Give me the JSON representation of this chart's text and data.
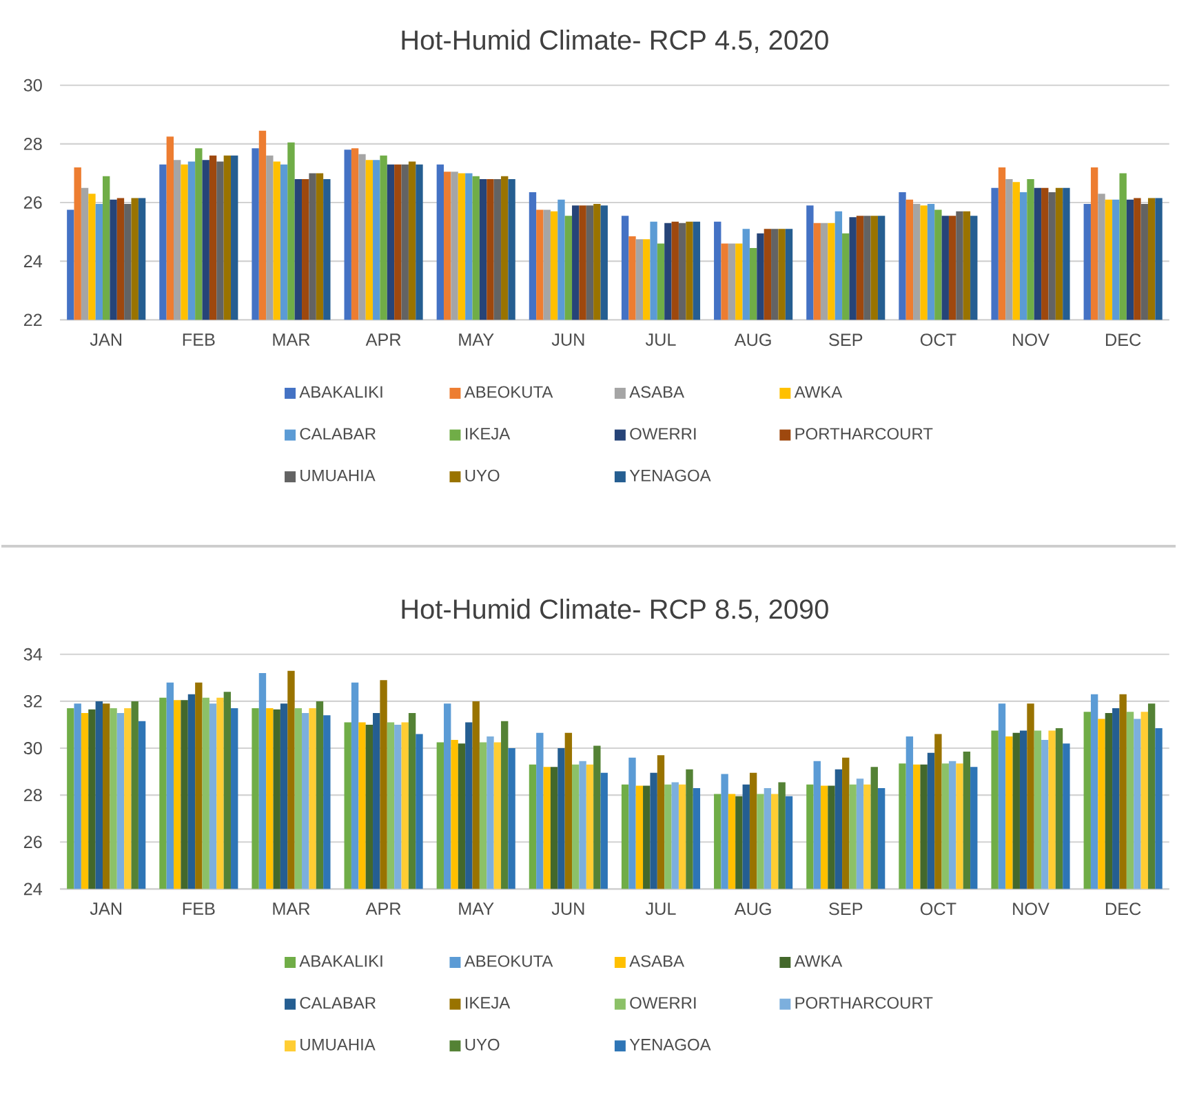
{
  "chart_data": [
    {
      "type": "bar",
      "title": "Hot-Humid Climate- RCP 4.5, 2020",
      "categories": [
        "JAN",
        "FEB",
        "MAR",
        "APR",
        "MAY",
        "JUN",
        "JUL",
        "AUG",
        "SEP",
        "OCT",
        "NOV",
        "DEC"
      ],
      "ylim": [
        22,
        30
      ],
      "yticks": [
        22,
        24,
        26,
        28,
        30
      ],
      "grid": "y",
      "legend": "bottom",
      "series": [
        {
          "name": "ABAKALIKI",
          "color": "#4472c4",
          "values": [
            25.75,
            27.3,
            27.85,
            27.8,
            27.3,
            26.35,
            25.55,
            25.35,
            25.9,
            26.35,
            26.5,
            25.95
          ]
        },
        {
          "name": "ABEOKUTA",
          "color": "#ed7d31",
          "values": [
            27.2,
            28.25,
            28.45,
            27.85,
            27.05,
            25.75,
            24.85,
            24.6,
            25.3,
            26.1,
            27.2,
            27.2
          ]
        },
        {
          "name": "ASABA",
          "color": "#a5a5a5",
          "values": [
            26.5,
            27.45,
            27.6,
            27.65,
            27.05,
            25.75,
            24.75,
            24.6,
            25.3,
            25.95,
            26.8,
            26.3
          ]
        },
        {
          "name": "AWKA",
          "color": "#ffc000",
          "values": [
            26.3,
            27.3,
            27.4,
            27.45,
            27.0,
            25.7,
            24.75,
            24.6,
            25.3,
            25.9,
            26.7,
            26.1
          ]
        },
        {
          "name": "CALABAR",
          "color": "#5b9bd5",
          "values": [
            25.95,
            27.4,
            27.3,
            27.45,
            27.0,
            26.1,
            25.35,
            25.1,
            25.7,
            25.95,
            26.35,
            26.1
          ]
        },
        {
          "name": "IKEJA",
          "color": "#70ad47",
          "values": [
            26.9,
            27.85,
            28.05,
            27.6,
            26.9,
            25.55,
            24.6,
            24.45,
            24.95,
            25.75,
            26.8,
            27.0
          ]
        },
        {
          "name": "OWERRI",
          "color": "#264478",
          "values": [
            26.1,
            27.45,
            26.8,
            27.3,
            26.8,
            25.9,
            25.3,
            24.95,
            25.5,
            25.55,
            26.5,
            26.1
          ]
        },
        {
          "name": "PORTHARCOURT",
          "color": "#9e480e",
          "values": [
            26.15,
            27.6,
            26.8,
            27.3,
            26.8,
            25.9,
            25.35,
            25.1,
            25.55,
            25.55,
            26.5,
            26.15
          ]
        },
        {
          "name": "UMUAHIA",
          "color": "#636363",
          "values": [
            25.95,
            27.4,
            27.0,
            27.3,
            26.8,
            25.9,
            25.3,
            25.1,
            25.55,
            25.7,
            26.35,
            25.95
          ]
        },
        {
          "name": "UYO",
          "color": "#997300",
          "values": [
            26.15,
            27.6,
            27.0,
            27.4,
            26.9,
            25.95,
            25.35,
            25.1,
            25.55,
            25.7,
            26.5,
            26.15
          ]
        },
        {
          "name": "YENAGOA",
          "color": "#255e91",
          "values": [
            26.15,
            27.6,
            26.8,
            27.3,
            26.8,
            25.9,
            25.35,
            25.1,
            25.55,
            25.55,
            26.5,
            26.15
          ]
        }
      ]
    },
    {
      "type": "bar",
      "title": "Hot-Humid Climate- RCP 8.5, 2090",
      "categories": [
        "JAN",
        "FEB",
        "MAR",
        "APR",
        "MAY",
        "JUN",
        "JUL",
        "AUG",
        "SEP",
        "OCT",
        "NOV",
        "DEC"
      ],
      "ylim": [
        24,
        34
      ],
      "yticks": [
        24,
        26,
        28,
        30,
        32,
        34
      ],
      "grid": "y",
      "legend": "bottom",
      "series": [
        {
          "name": "ABAKALIKI",
          "color": "#70ad47",
          "values": [
            31.7,
            32.15,
            31.7,
            31.1,
            30.25,
            29.3,
            28.45,
            28.05,
            28.45,
            29.35,
            30.75,
            31.55
          ]
        },
        {
          "name": "ABEOKUTA",
          "color": "#5b9bd5",
          "values": [
            31.9,
            32.8,
            33.2,
            32.8,
            31.9,
            30.65,
            29.6,
            28.9,
            29.45,
            30.5,
            31.9,
            32.3
          ]
        },
        {
          "name": "ASABA",
          "color": "#ffc000",
          "values": [
            31.5,
            32.05,
            31.7,
            31.1,
            30.35,
            29.2,
            28.4,
            28.05,
            28.4,
            29.3,
            30.5,
            31.25
          ]
        },
        {
          "name": "AWKA",
          "color": "#43682b",
          "values": [
            31.65,
            32.05,
            31.65,
            31.0,
            30.2,
            29.2,
            28.4,
            27.95,
            28.4,
            29.3,
            30.65,
            31.5
          ]
        },
        {
          "name": "CALABAR",
          "color": "#255e91",
          "values": [
            32.0,
            32.3,
            31.9,
            31.5,
            31.1,
            30.0,
            28.95,
            28.45,
            29.1,
            29.8,
            30.75,
            31.7
          ]
        },
        {
          "name": "IKEJA",
          "color": "#997300",
          "values": [
            31.9,
            32.8,
            33.3,
            32.9,
            32.0,
            30.65,
            29.7,
            28.95,
            29.6,
            30.6,
            31.9,
            32.3
          ]
        },
        {
          "name": "OWERRI",
          "color": "#8cc168",
          "values": [
            31.7,
            32.15,
            31.7,
            31.1,
            30.25,
            29.3,
            28.45,
            28.05,
            28.45,
            29.35,
            30.75,
            31.55
          ]
        },
        {
          "name": "PORTHARCOURT",
          "color": "#7cafdd",
          "values": [
            31.5,
            31.9,
            31.5,
            31.0,
            30.5,
            29.45,
            28.55,
            28.3,
            28.7,
            29.45,
            30.35,
            31.25
          ]
        },
        {
          "name": "UMUAHIA",
          "color": "#ffcd33",
          "values": [
            31.7,
            32.15,
            31.7,
            31.1,
            30.25,
            29.3,
            28.45,
            28.05,
            28.45,
            29.35,
            30.75,
            31.55
          ]
        },
        {
          "name": "UYO",
          "color": "#548235",
          "values": [
            32.0,
            32.4,
            32.0,
            31.5,
            31.15,
            30.1,
            29.1,
            28.55,
            29.2,
            29.85,
            30.85,
            31.9
          ]
        },
        {
          "name": "YENAGOA",
          "color": "#2e75b6",
          "values": [
            31.15,
            31.7,
            31.4,
            30.6,
            30.0,
            28.95,
            28.3,
            27.95,
            28.3,
            29.2,
            30.2,
            30.85
          ]
        }
      ]
    }
  ]
}
